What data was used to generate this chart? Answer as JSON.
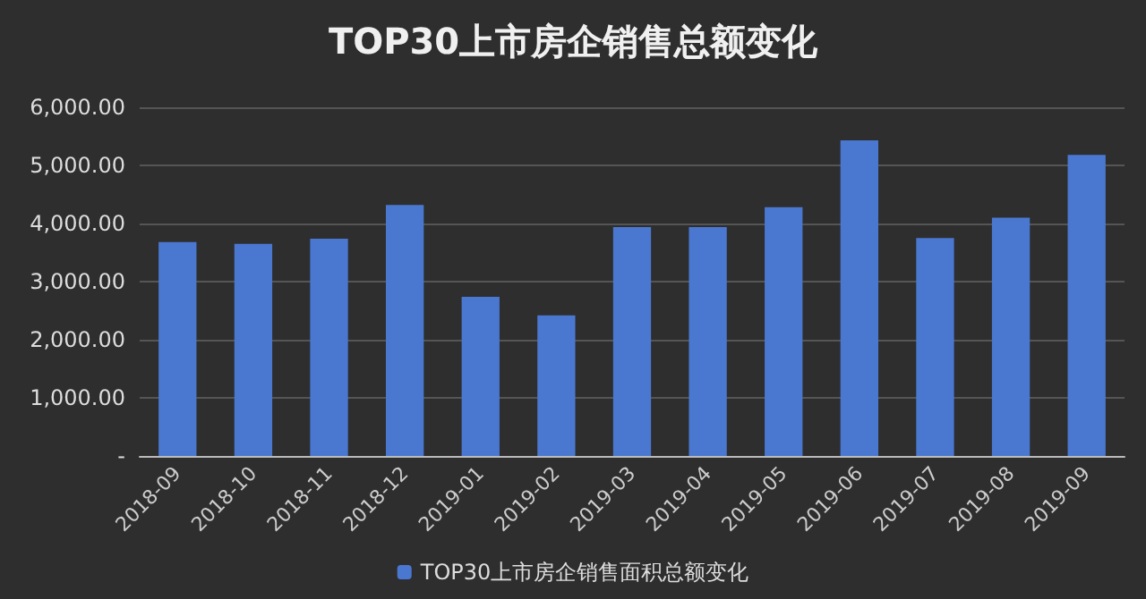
{
  "chart_data": {
    "type": "bar",
    "title": "TOP30上市房企销售总额变化",
    "categories": [
      "2018-09",
      "2018-10",
      "2018-11",
      "2018-12",
      "2019-01",
      "2019-02",
      "2019-03",
      "2019-04",
      "2019-05",
      "2019-06",
      "2019-07",
      "2019-08",
      "2019-09"
    ],
    "series": [
      {
        "name": "TOP30上市房企销售面积总额变化",
        "color": "#4a78d0",
        "values": [
          3680,
          3650,
          3740,
          4320,
          2740,
          2420,
          3940,
          3940,
          4280,
          5430,
          3750,
          4100,
          5180
        ]
      }
    ],
    "ylim": [
      0,
      6000
    ],
    "yticks": [
      {
        "value": 0,
        "label": "-"
      },
      {
        "value": 1000,
        "label": "1,000.00"
      },
      {
        "value": 2000,
        "label": "2,000.00"
      },
      {
        "value": 3000,
        "label": "3,000.00"
      },
      {
        "value": 4000,
        "label": "4,000.00"
      },
      {
        "value": 5000,
        "label": "5,000.00"
      },
      {
        "value": 6000,
        "label": "6,000.00"
      }
    ],
    "grid": "y",
    "legend": "bottom"
  }
}
